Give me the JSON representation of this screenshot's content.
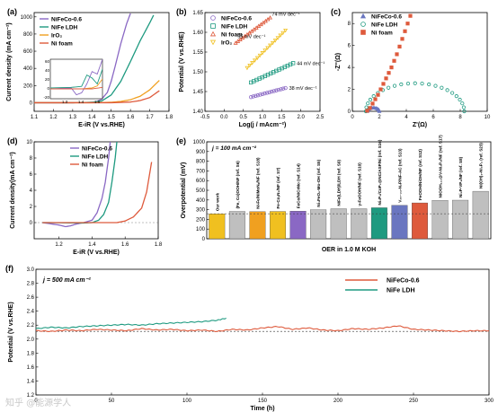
{
  "watermark": "知乎 @能源学人",
  "colors": {
    "purple": "#8a68c4",
    "teal": "#1e9a80",
    "orange": "#f0a020",
    "red": "#de5a3c",
    "gold": "#f0c020",
    "gray": "#bfbfbf",
    "blue": "#6a76c0",
    "ltgray": "#cfcfcf"
  },
  "chart_data": [
    {
      "panel": "(a)",
      "type": "line",
      "xlabel": "E-iR (V vs.RHE)",
      "ylabel": "Current density (mA cm⁻²)",
      "xlim": [
        1.1,
        1.8
      ],
      "ylim": [
        -100,
        1050
      ],
      "xticks": [
        1.1,
        1.2,
        1.3,
        1.4,
        1.5,
        1.6,
        1.7,
        1.8
      ],
      "yticks": [
        0,
        200,
        400,
        600,
        800,
        1000
      ],
      "legend": "top-left",
      "series": [
        {
          "name": "NiFeCo-0.6",
          "color": "purple",
          "x": [
            1.1,
            1.3,
            1.38,
            1.42,
            1.45,
            1.48,
            1.5,
            1.52,
            1.55,
            1.58,
            1.6
          ],
          "y": [
            0,
            0,
            2,
            10,
            40,
            120,
            250,
            420,
            690,
            920,
            1040
          ]
        },
        {
          "name": "NiFe LDH",
          "color": "teal",
          "x": [
            1.1,
            1.3,
            1.4,
            1.45,
            1.5,
            1.55,
            1.6,
            1.65,
            1.7,
            1.72
          ],
          "y": [
            0,
            0,
            5,
            20,
            90,
            250,
            480,
            720,
            930,
            1020
          ]
        },
        {
          "name": "IrO₂",
          "color": "orange",
          "x": [
            1.1,
            1.4,
            1.5,
            1.55,
            1.6,
            1.65,
            1.7,
            1.75
          ],
          "y": [
            0,
            0,
            5,
            15,
            35,
            75,
            150,
            260
          ]
        },
        {
          "name": "Ni foam",
          "color": "red",
          "x": [
            1.1,
            1.5,
            1.6,
            1.65,
            1.7,
            1.75
          ],
          "y": [
            0,
            0,
            8,
            25,
            60,
            140
          ]
        }
      ],
      "inset": {
        "xlim": [
          1.0,
          1.5
        ],
        "ylim": [
          -20,
          60
        ],
        "xticks": [
          "1.3",
          "1.4",
          "1.5"
        ],
        "yticks": [
          "60",
          "40",
          "20",
          "0",
          "-20"
        ]
      }
    },
    {
      "panel": "(b)",
      "type": "scatter",
      "xlabel": "Log(j / mAcm⁻²)",
      "ylabel": "Potential (V vs.RHE)",
      "xlim": [
        -0.5,
        2.5
      ],
      "ylim": [
        1.4,
        1.65
      ],
      "xticks": [
        -0.5,
        0.0,
        0.5,
        1.0,
        1.5,
        2.0,
        2.5
      ],
      "yticks": [
        1.4,
        1.45,
        1.5,
        1.55,
        1.6,
        1.65
      ],
      "legend": "top-left",
      "series": [
        {
          "name": "NiFeCo-0.6",
          "color": "purple",
          "marker": "circle",
          "x_range": [
            0.7,
            1.6
          ],
          "y_range": [
            1.436,
            1.459
          ],
          "label": "38 mV dec⁻¹"
        },
        {
          "name": "NiFe LDH",
          "color": "teal",
          "marker": "square",
          "x_range": [
            0.7,
            1.8
          ],
          "y_range": [
            1.473,
            1.522
          ],
          "label": "44 mV dec⁻¹"
        },
        {
          "name": "Ni foam",
          "color": "red",
          "marker": "triangle",
          "x_range": [
            0.3,
            1.2
          ],
          "y_range": [
            1.573,
            1.637
          ],
          "label": "74 mV dec⁻¹"
        },
        {
          "name": "IrO₂",
          "color": "gold",
          "marker": "triangle-down",
          "x_range": [
            0.6,
            1.6
          ],
          "y_range": [
            1.51,
            1.605
          ],
          "label": "95 mV dec⁻¹"
        }
      ]
    },
    {
      "panel": "(c)",
      "type": "scatter",
      "xlabel": "Z'(Ω)",
      "ylabel": "-Z''(Ω)",
      "xlim": [
        0,
        10
      ],
      "ylim": [
        0,
        9
      ],
      "xticks": [
        0,
        2,
        4,
        6,
        8,
        10
      ],
      "yticks": [
        0,
        2,
        4,
        6,
        8
      ],
      "legend": "top-left",
      "series": [
        {
          "name": "NiFeCo-0.6",
          "color": "blue",
          "marker": "triangle",
          "arc": {
            "x0": 1.1,
            "x1": 2.0
          }
        },
        {
          "name": "NiFe LDH",
          "color": "teal",
          "marker": "circle",
          "arc": {
            "x0": 1.0,
            "x1": 8.3
          }
        },
        {
          "name": "Ni foam",
          "color": "red",
          "marker": "square",
          "x": [
            1.1,
            1.3,
            1.5,
            1.7,
            1.9,
            2.1,
            2.3,
            2.5,
            2.7,
            2.9,
            3.1,
            3.3,
            3.5,
            3.7,
            3.9,
            4.1,
            4.3
          ],
          "y": [
            0.05,
            0.3,
            0.7,
            1.1,
            1.5,
            2.0,
            2.5,
            3.0,
            3.5,
            4.0,
            4.6,
            5.2,
            5.9,
            6.6,
            7.3,
            8.0,
            8.7
          ]
        }
      ]
    },
    {
      "panel": "(d)",
      "type": "line",
      "xlabel": "E-iR (V vs.RHE)",
      "ylabel": "Current density(mA cm⁻²)",
      "xlim": [
        1.05,
        1.8
      ],
      "ylim": [
        -2,
        10
      ],
      "xticks": [
        1.2,
        1.4,
        1.6,
        1.8
      ],
      "yticks": [
        0,
        2,
        4,
        6,
        8,
        10
      ],
      "legend": "top-left",
      "series": [
        {
          "name": "NiFeCo-0.6",
          "color": "purple",
          "x": [
            1.1,
            1.2,
            1.24,
            1.27,
            1.3,
            1.35,
            1.4,
            1.43,
            1.46,
            1.48,
            1.5,
            1.51
          ],
          "y": [
            0,
            -0.3,
            -0.5,
            -0.4,
            -0.2,
            0,
            0.3,
            1.2,
            3,
            5,
            8,
            10
          ]
        },
        {
          "name": "NiFe LDH",
          "color": "teal",
          "x": [
            1.1,
            1.35,
            1.4,
            1.44,
            1.47,
            1.5,
            1.52,
            1.54,
            1.55
          ],
          "y": [
            0,
            -0.05,
            0,
            0.3,
            1,
            2.5,
            5,
            8,
            10
          ]
        },
        {
          "name": "Ni foam",
          "color": "red",
          "x": [
            1.1,
            1.55,
            1.6,
            1.65,
            1.7,
            1.73,
            1.76
          ],
          "y": [
            0,
            0,
            0.2,
            0.7,
            1.8,
            3.8,
            7.5
          ]
        }
      ]
    },
    {
      "panel": "(e)",
      "type": "bar",
      "title": "OER in 1.0 M KOH",
      "annotation": "j = 100 mA cm⁻²",
      "ylabel": "Overpotential (mV)",
      "ylim": [
        0,
        1000
      ],
      "yticks": [
        0,
        100,
        200,
        300,
        400,
        500,
        600,
        700,
        800,
        900,
        1000
      ],
      "reference_line": 258,
      "categories": [
        "Our work",
        "(Fe, Co)OOH/NF (ref. S6)",
        "Ni-Fe/NiMoNₓ/NF (ref. S18)",
        "Fe-CoₓN₂/NF (ref. S7)",
        "FeCo/NiCrMo (ref. S14)",
        "Ni₃FeO₆-Mo-OH (ref. S5)",
        "NiFe(LDH)/LDH (ref. S9)",
        "γ-FeOOH/NF (ref. S10)",
        "Ni₂P₂/CoP₂@NC/ASP/Ni (ref. S16)",
        "V₂₀₋₂₄-N₂P/NF-AC (ref. S13)",
        "FeOOH/NiOH/NF (ref. S12)",
        "NiOOH₁₁₃@V-Ni₃P₂/NF (ref. S17)",
        "Ni₂P-VP₂/NF (ref. S8)",
        "Ni(OH)₂-Ni₃P₄ (ref. S23)"
      ],
      "values": [
        258,
        282,
        280,
        282,
        285,
        300,
        310,
        310,
        320,
        345,
        370,
        395,
        398,
        490
      ],
      "bar_colors": [
        "gold",
        "gray",
        "orange",
        "gold",
        "purple",
        "gray",
        "gray",
        "gray",
        "teal",
        "blue",
        "red",
        "gray",
        "gray",
        "gray"
      ]
    },
    {
      "panel": "(f)",
      "type": "line",
      "annotation": "j = 500 mA cm⁻²",
      "xlabel": "Time (h)",
      "ylabel": "Potential (V vs.RHE)",
      "xlim": [
        0,
        300
      ],
      "ylim": [
        1.2,
        3.0
      ],
      "xticks": [
        0,
        50,
        100,
        150,
        200,
        250,
        300
      ],
      "yticks": [
        1.2,
        1.4,
        1.6,
        1.8,
        2.0,
        2.2,
        2.4,
        2.6,
        2.8,
        3.0
      ],
      "reference_line": 2.11,
      "legend": "top-right",
      "series": [
        {
          "name": "NiFeCo-0.6",
          "color": "red",
          "x": [
            0,
            10,
            20,
            30,
            40,
            50,
            60,
            70,
            80,
            90,
            100,
            110,
            120,
            130,
            140,
            150,
            160,
            170,
            180,
            190,
            200,
            210,
            220,
            230,
            240,
            250,
            260,
            270,
            280,
            290,
            300
          ],
          "y": [
            2.12,
            2.11,
            2.13,
            2.12,
            2.14,
            2.13,
            2.12,
            2.15,
            2.13,
            2.14,
            2.12,
            2.13,
            2.11,
            2.14,
            2.13,
            2.16,
            2.18,
            2.14,
            2.16,
            2.13,
            2.12,
            2.15,
            2.14,
            2.16,
            2.19,
            2.14,
            2.13,
            2.12,
            2.11,
            2.12,
            2.12
          ]
        },
        {
          "name": "NiFe LDH",
          "color": "teal",
          "x": [
            0,
            10,
            20,
            30,
            40,
            50,
            60,
            70,
            80,
            90,
            100,
            110,
            120,
            126
          ],
          "y": [
            2.15,
            2.17,
            2.16,
            2.18,
            2.19,
            2.2,
            2.21,
            2.2,
            2.22,
            2.23,
            2.24,
            2.25,
            2.27,
            2.3
          ]
        }
      ]
    }
  ]
}
